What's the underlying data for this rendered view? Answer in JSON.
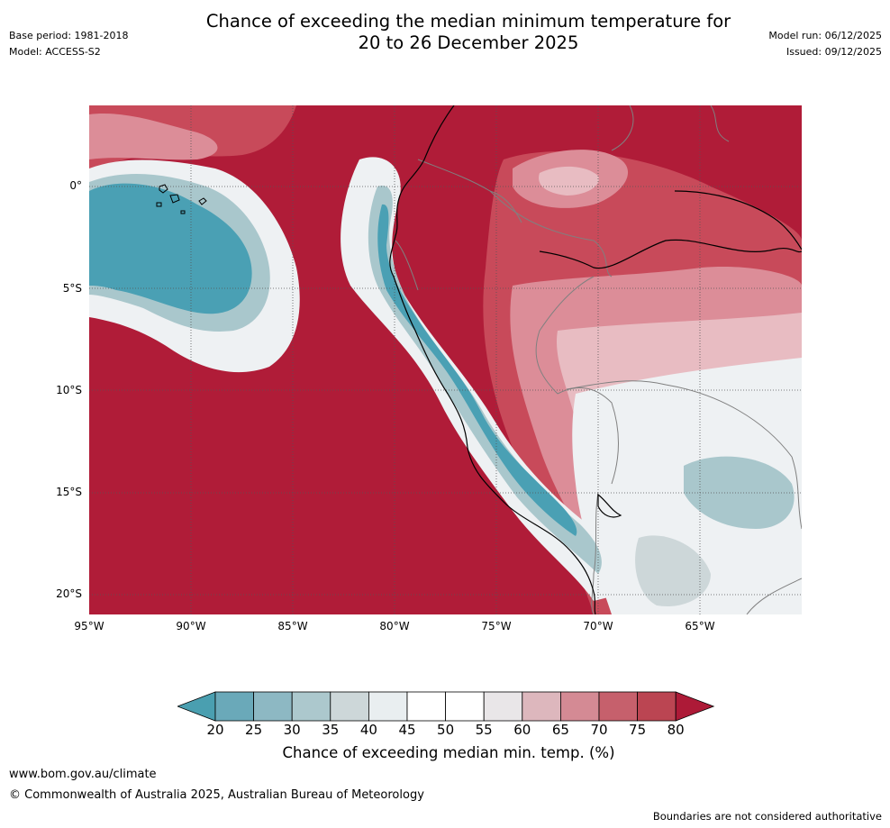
{
  "header": {
    "title_line1": "Chance of exceeding the median minimum temperature for",
    "title_line2": "20 to 26 December 2025",
    "base_period": "Base period: 1981-2018",
    "model": "Model: ACCESS-S2",
    "model_run": "Model run: 06/12/2025",
    "issued": "Issued: 09/12/2025"
  },
  "map": {
    "lon_labels": [
      "95°W",
      "90°W",
      "85°W",
      "80°W",
      "75°W",
      "70°W",
      "65°W"
    ],
    "lat_labels": [
      "0°",
      "5°S",
      "10°S",
      "15°S",
      "20°S"
    ],
    "palette": {
      "ocean_hot": "#b01c38",
      "hot_mid": "#c84a5a",
      "hot_light": "#dc8d98",
      "pale_pink": "#e8bcc2",
      "neutral": "#eef1f3",
      "cool_light": "#a9c7cc",
      "cool": "#4aa0b4",
      "coast": "#000000",
      "border": "#808080",
      "grid": "#555555"
    }
  },
  "colorbar": {
    "ticks": [
      "20",
      "25",
      "30",
      "35",
      "40",
      "45",
      "50",
      "55",
      "60",
      "65",
      "70",
      "75",
      "80"
    ],
    "colors": [
      "#4a9fb0",
      "#6aa9b9",
      "#8db8c3",
      "#acc8cd",
      "#cdd7d9",
      "#e9eef0",
      "#ffffff",
      "#ffffff",
      "#e9e6e8",
      "#ddb7bd",
      "#d48a94",
      "#c6606c",
      "#bb4552",
      "#ad1a37"
    ],
    "label": "Chance of exceeding median min. temp. (%)"
  },
  "footer": {
    "url": "www.bom.gov.au/climate",
    "copyright": "© Commonwealth of Australia 2025, Australian Bureau of Meteorology",
    "note": "Boundaries are not considered authoritative"
  }
}
